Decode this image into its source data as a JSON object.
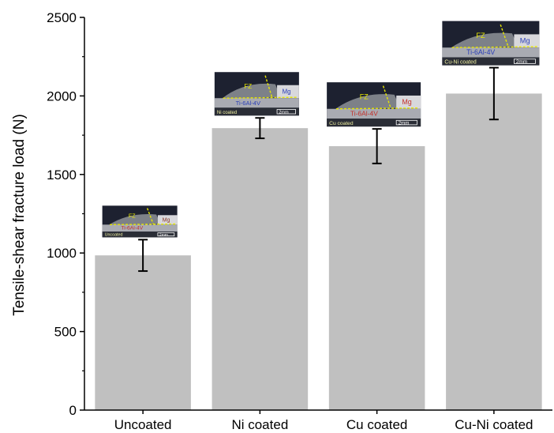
{
  "chart_data": {
    "type": "bar",
    "title": "",
    "xlabel": "",
    "ylabel": "Tensile-shear fracture load (N)",
    "ylim": [
      0,
      2500
    ],
    "yticks": [
      0,
      500,
      1000,
      1500,
      2000,
      2500
    ],
    "grid": false,
    "categories": [
      "Uncoated",
      "Ni coated",
      "Cu coated",
      "Cu-Ni coated"
    ],
    "values": [
      985,
      1795,
      1680,
      2015
    ],
    "error_bars": [
      {
        "low": 885,
        "high": 1085
      },
      {
        "low": 1730,
        "high": 1860
      },
      {
        "low": 1570,
        "high": 1790
      },
      {
        "low": 1850,
        "high": 2180
      }
    ],
    "bar_color": "#c0c0c0",
    "inset_images": [
      {
        "category": "Uncoated",
        "labels": {
          "fz": "FZ",
          "metal": "Mg",
          "base": "Ti-6Al-4V",
          "coating": "Uncoated",
          "scale": "2mm"
        },
        "metal_color": "#8a3b2a",
        "base_color": "#c4302b"
      },
      {
        "category": "Ni coated",
        "labels": {
          "fz": "FZ",
          "metal": "Mg",
          "base": "Ti-6Al-4V",
          "coating": "Ni coated",
          "scale": "2mm"
        },
        "metal_color": "#2b3fb8",
        "base_color": "#2b3fb8"
      },
      {
        "category": "Cu coated",
        "labels": {
          "fz": "FZ",
          "metal": "Mg",
          "base": "Ti-6Al-4V",
          "coating": "Cu coated",
          "scale": "2mm"
        },
        "metal_color": "#c4302b",
        "base_color": "#c4302b"
      },
      {
        "category": "Cu-Ni coated",
        "labels": {
          "fz": "FZ",
          "metal": "Mg",
          "base": "Ti-6Al-4V",
          "coating": "Cu-Ni coated",
          "scale": "2mm"
        },
        "metal_color": "#2b3fb8",
        "base_color": "#2b3fb8"
      }
    ]
  }
}
